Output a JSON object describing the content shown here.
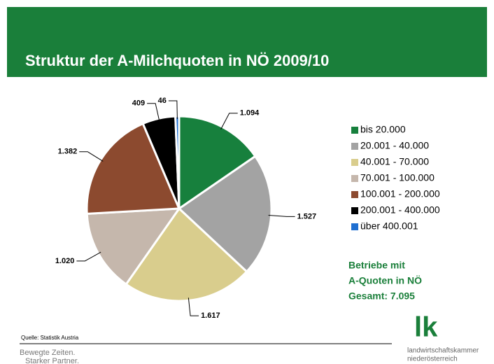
{
  "chart_data": {
    "type": "pie",
    "title": "Struktur der A-Milchquoten in NÖ 2009/10",
    "categories": [
      "bis 20.000",
      "20.001 - 40.000",
      "40.001 - 70.000",
      "70.001 - 100.000",
      "100.001 - 200.000",
      "200.001 - 400.000",
      "über 400.001"
    ],
    "values": [
      1094,
      1527,
      1617,
      1020,
      1382,
      409,
      46
    ],
    "value_labels": [
      "1.094",
      "1.527",
      "1.617",
      "1.020",
      "1.382",
      "409",
      "46"
    ],
    "colors": [
      "#17803d",
      "#a3a3a3",
      "#d9cd8d",
      "#c5b7ac",
      "#8c4a2f",
      "#000000",
      "#1f6fd1"
    ],
    "legend": "right",
    "annotations": [
      "Betriebe mit",
      "A-Quoten in NÖ",
      "Gesamt: 7.095"
    ],
    "source": "Quelle: Statistik Austria"
  },
  "footer": {
    "slogan": [
      "Bewegte Zeiten.",
      "Starker Partner."
    ],
    "logo": "lk",
    "organization": [
      "landwirtschaftskammer",
      "niederösterreich"
    ]
  }
}
